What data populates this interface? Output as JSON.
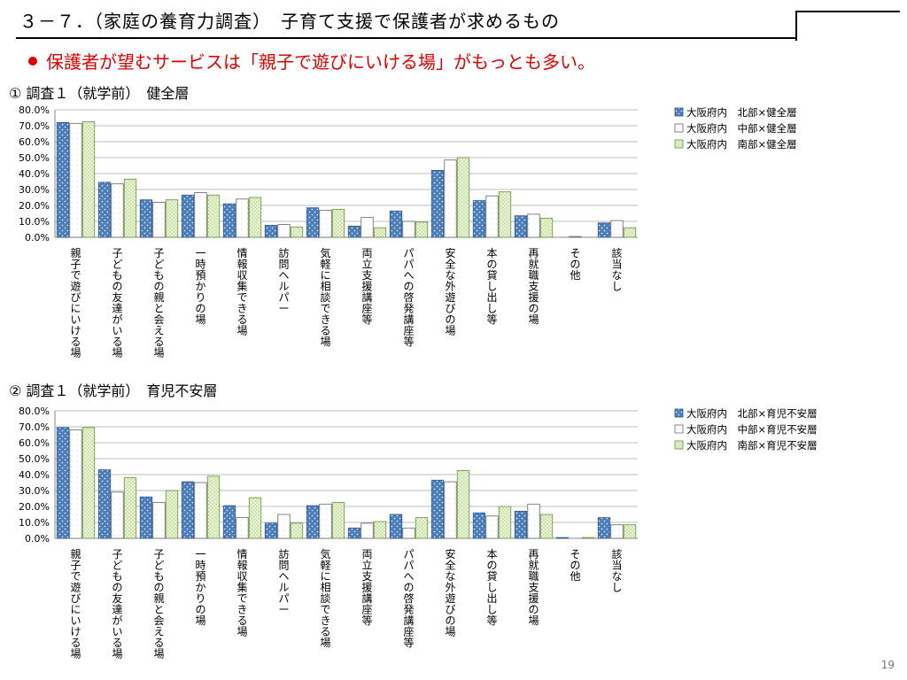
{
  "slide": {
    "title": "３－７．（家庭の養育力調査）　子育て支援で保護者が求めるもの",
    "bullet": "保護者が望むサービスは「親子で遊びにいける場」がもっとも多い。",
    "page_number": "19"
  },
  "colors": {
    "north": "#4a7ebb",
    "central": "#ffffff",
    "south": "#c8e0a0",
    "bullet_red": "#e00000",
    "grid": "#bfbfbf"
  },
  "chart_data": [
    {
      "type": "bar",
      "heading": "① 調査１（就学前）　健全層",
      "categories": [
        "親子で遊びにいける場",
        "子どもの友達がいる場",
        "子どもの親と会える場",
        "一時預かりの場",
        "情報収集できる場",
        "訪問ヘルパー",
        "気軽に相談できる場",
        "両立支援講座等",
        "パパへの啓発講座等",
        "安全な外遊びの場",
        "本の貸し出し等",
        "再就職支援の場",
        "その他",
        "該当なし"
      ],
      "series": [
        {
          "name": "大阪府内　北部×健全層",
          "values": [
            72.0,
            34.5,
            23.5,
            26.5,
            21.0,
            7.5,
            18.5,
            7.0,
            16.5,
            42.0,
            23.0,
            13.5,
            0.0,
            9.0
          ]
        },
        {
          "name": "大阪府内　中部×健全層",
          "values": [
            71.5,
            33.5,
            22.0,
            28.0,
            24.0,
            8.0,
            17.0,
            12.5,
            10.0,
            48.5,
            26.0,
            14.5,
            0.5,
            10.5
          ]
        },
        {
          "name": "大阪府内　南部×健全層",
          "values": [
            72.5,
            36.5,
            23.5,
            26.5,
            25.0,
            6.5,
            17.5,
            6.0,
            9.5,
            50.0,
            28.5,
            12.0,
            0.0,
            6.0
          ]
        }
      ],
      "y_ticks": [
        "0.0%",
        "10.0%",
        "20.0%",
        "30.0%",
        "40.0%",
        "50.0%",
        "60.0%",
        "70.0%",
        "80.0%"
      ],
      "ylim": [
        0,
        80
      ],
      "grid": true,
      "legend": "top-right"
    },
    {
      "type": "bar",
      "heading": "② 調査１（就学前）　育児不安層",
      "categories": [
        "親子で遊びにいける場",
        "子どもの友達がいる場",
        "子どもの親と会える場",
        "一時預かりの場",
        "情報収集できる場",
        "訪問ヘルパー",
        "気軽に相談できる場",
        "両立支援講座等",
        "パパへの啓発講座等",
        "安全な外遊びの場",
        "本の貸し出し等",
        "再就職支援の場",
        "その他",
        "該当なし"
      ],
      "series": [
        {
          "name": "大阪府内　北部×育児不安層",
          "values": [
            69.5,
            43.0,
            26.0,
            35.5,
            20.5,
            9.5,
            20.5,
            6.5,
            15.0,
            36.5,
            16.0,
            17.0,
            0.5,
            13.0
          ]
        },
        {
          "name": "大阪府内　中部×育児不安層",
          "values": [
            68.0,
            29.0,
            22.5,
            35.0,
            13.0,
            15.0,
            21.5,
            9.5,
            6.5,
            35.5,
            14.0,
            21.5,
            0.0,
            8.5
          ]
        },
        {
          "name": "大阪府内　南部×育児不安層",
          "values": [
            69.5,
            38.0,
            30.0,
            39.0,
            25.5,
            9.5,
            22.5,
            10.5,
            13.0,
            42.5,
            20.0,
            15.0,
            0.5,
            8.5
          ]
        }
      ],
      "y_ticks": [
        "0.0%",
        "10.0%",
        "20.0%",
        "30.0%",
        "40.0%",
        "50.0%",
        "60.0%",
        "70.0%",
        "80.0%"
      ],
      "ylim": [
        0,
        80
      ],
      "grid": true,
      "legend": "top-right"
    }
  ]
}
